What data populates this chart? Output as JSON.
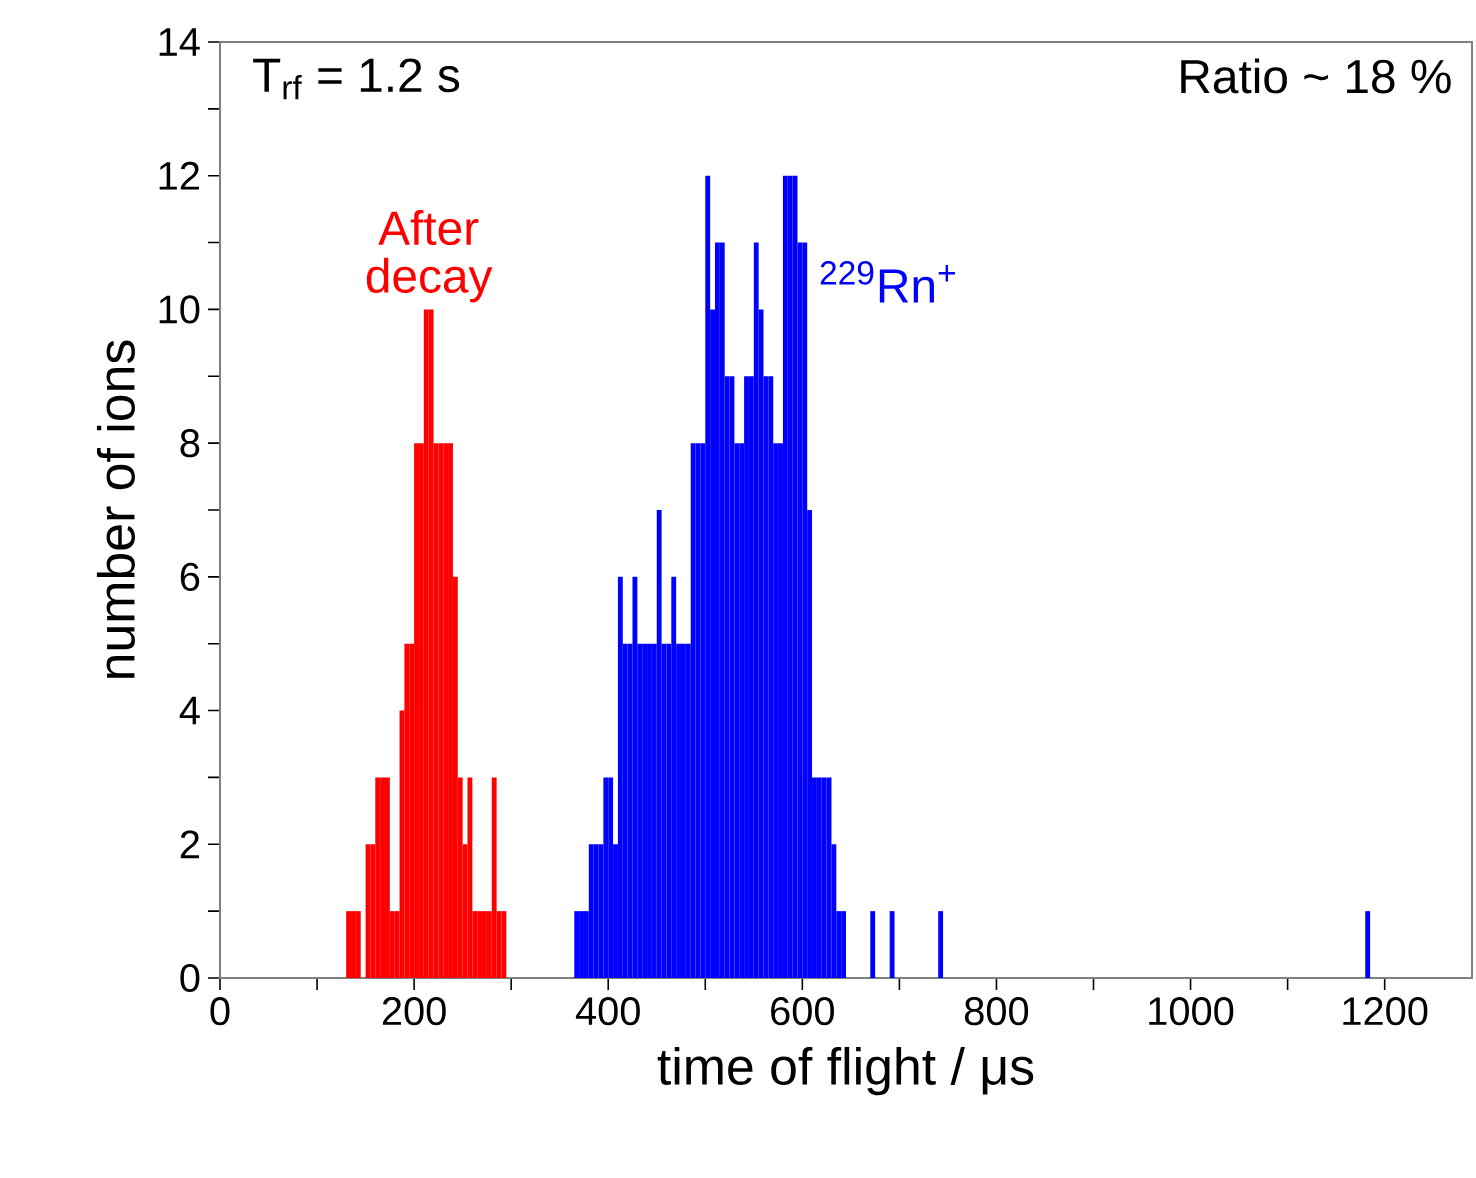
{
  "chart_data": {
    "type": "histogram",
    "xlabel": "time of flight / μs",
    "ylabel": "number of ions",
    "annotations": [
      "T$_{rf}$ = 1.2 s",
      "Ratio ~ 18 %"
    ],
    "bins": [
      130,
      135,
      140,
      145,
      150,
      155,
      160,
      165,
      170,
      175,
      180,
      185,
      190,
      195,
      200,
      205,
      210,
      215,
      220,
      225,
      230,
      235,
      240,
      245,
      250,
      255,
      260,
      265,
      270,
      275,
      280,
      285,
      290,
      295,
      365,
      370,
      375,
      380,
      385,
      390,
      395,
      400,
      405,
      410,
      415,
      420,
      425,
      430,
      435,
      440,
      445,
      450,
      455,
      460,
      465,
      470,
      475,
      480,
      485,
      490,
      495,
      500,
      505,
      510,
      515,
      520,
      525,
      530,
      535,
      540,
      545,
      550,
      555,
      560,
      565,
      570,
      575,
      580,
      585,
      590,
      595,
      600,
      605,
      610,
      615,
      620,
      625,
      630,
      635,
      640,
      645,
      670,
      675,
      690,
      695,
      740,
      745,
      1180,
      1185
    ],
    "series": [
      {
        "name": "After decay",
        "color": "#ff0000",
        "values": [
          1,
          1,
          1,
          0,
          2,
          2,
          3,
          3,
          3,
          1,
          1,
          4,
          5,
          5,
          8,
          8,
          10,
          10,
          8,
          8,
          8,
          8,
          6,
          3,
          2,
          3,
          1,
          1,
          1,
          1,
          3,
          1,
          1,
          0,
          0,
          0,
          0,
          0,
          0,
          0,
          0,
          0,
          0,
          0,
          0,
          0,
          0,
          0,
          0,
          0,
          0,
          0,
          0,
          0,
          0,
          0,
          0,
          0,
          0,
          0,
          0,
          0,
          0,
          0,
          0,
          0,
          0,
          0,
          0,
          0,
          0,
          0,
          0,
          0,
          0,
          0,
          0,
          0,
          0,
          0,
          0,
          0,
          0,
          0,
          0,
          0,
          0,
          0,
          0,
          0,
          0,
          0,
          0,
          0,
          0,
          0,
          0,
          0
        ]
      },
      {
        "name": "$^{229}$Rn$^{+}$",
        "color": "#0000ff",
        "values": [
          0,
          0,
          0,
          0,
          0,
          0,
          0,
          0,
          0,
          0,
          0,
          0,
          0,
          0,
          0,
          0,
          0,
          0,
          0,
          0,
          0,
          0,
          0,
          0,
          0,
          0,
          0,
          0,
          0,
          0,
          0,
          0,
          0,
          0,
          1,
          1,
          1,
          2,
          2,
          2,
          3,
          3,
          2,
          6,
          5,
          5,
          6,
          5,
          5,
          5,
          5,
          7,
          5,
          5,
          6,
          5,
          5,
          5,
          8,
          8,
          8,
          12,
          10,
          11,
          11,
          9,
          9,
          8,
          8,
          9,
          9,
          11,
          10,
          9,
          9,
          8,
          8,
          12,
          12,
          12,
          11,
          11,
          7,
          3,
          3,
          3,
          3,
          2,
          1,
          1,
          0,
          1,
          0,
          1,
          0,
          1,
          0,
          1
        ]
      }
    ],
    "xlim": [
      0,
      1290
    ],
    "ylim": [
      0,
      14
    ],
    "xticks": [
      0,
      {
        "value": 100,
        "label": null
      },
      200,
      {
        "value": 300,
        "label": null
      },
      400,
      {
        "value": 500,
        "label": null
      },
      600,
      {
        "value": 700,
        "label": null
      },
      800,
      {
        "value": 900,
        "label": null
      },
      1000,
      {
        "value": 1100,
        "label": null
      },
      1200
    ],
    "yticks": [
      0,
      {
        "value": 1,
        "label": null
      },
      2,
      {
        "value": 3,
        "label": null
      },
      4,
      {
        "value": 5,
        "label": null
      },
      6,
      {
        "value": 7,
        "label": null
      },
      8,
      {
        "value": 9,
        "label": null
      },
      10,
      {
        "value": 11,
        "label": null
      },
      12,
      {
        "value": 13,
        "label": null
      },
      14
    ]
  }
}
